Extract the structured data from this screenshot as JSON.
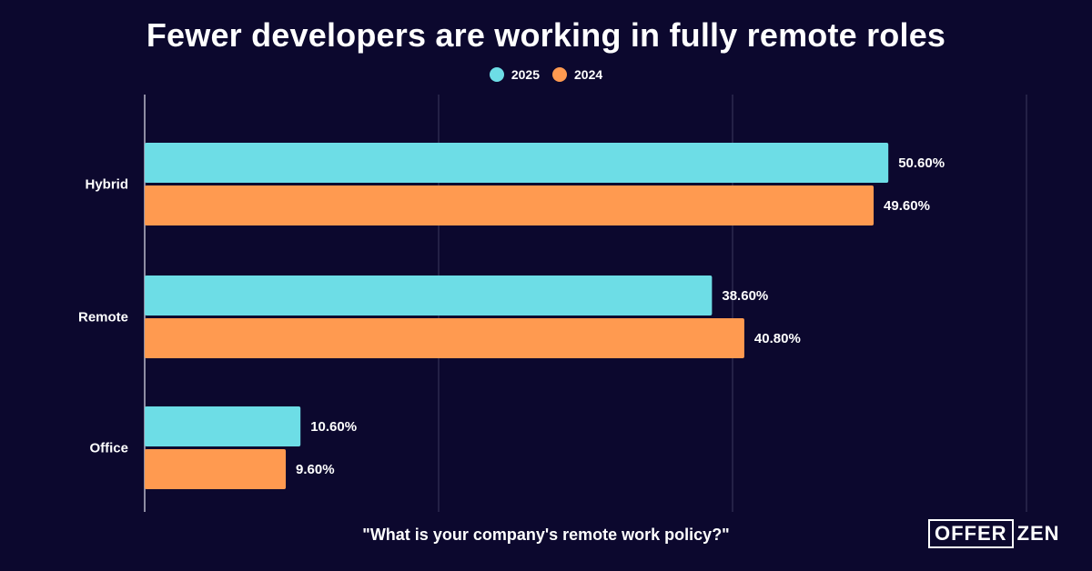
{
  "chart_data": {
    "type": "bar",
    "orientation": "horizontal",
    "title": "Fewer developers are working in fully remote roles",
    "categories": [
      "Hybrid",
      "Remote",
      "Office"
    ],
    "series": [
      {
        "name": "2025",
        "color": "#6ddde6",
        "values": [
          50.6,
          38.6,
          10.6
        ],
        "labels": [
          "50.60%",
          "38.60%",
          "10.60%"
        ]
      },
      {
        "name": "2024",
        "color": "#ff9a50",
        "values": [
          49.6,
          40.8,
          9.6
        ],
        "labels": [
          "49.60%",
          "40.80%",
          "9.60%"
        ]
      }
    ],
    "xlim": [
      0,
      60
    ],
    "grid": true,
    "legend": "top-center",
    "xlabel": "\"What is your company's remote work policy?\""
  },
  "brand": {
    "logo_part1": "OFFER",
    "logo_part2": "ZEN"
  },
  "colors": {
    "background": "#0c082e",
    "gridline": "#3d3a5e"
  }
}
